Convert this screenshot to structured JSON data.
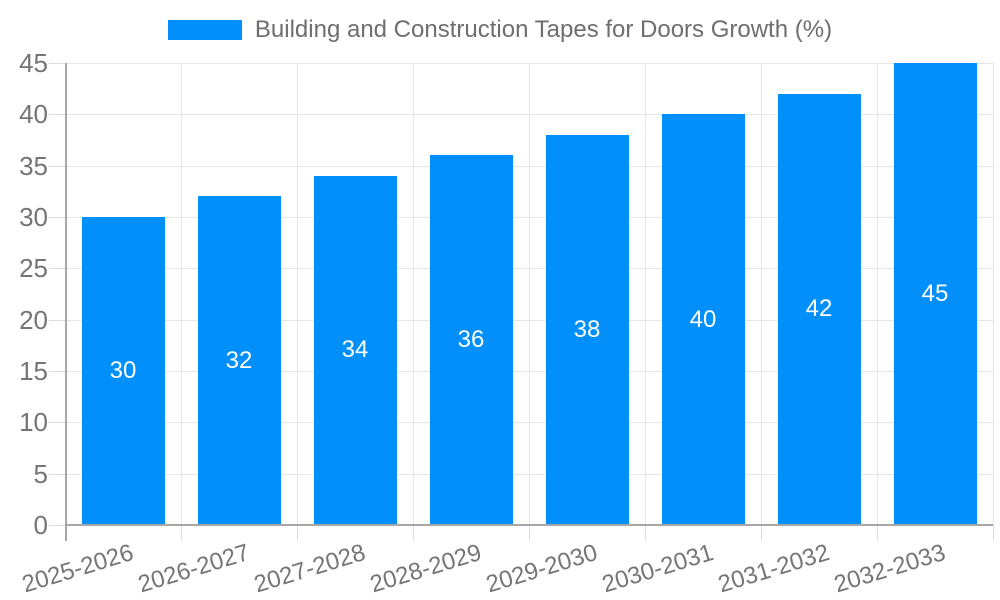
{
  "legend": {
    "label": "Building and Construction Tapes for Doors Growth (%)",
    "swatch_color": "#008FFB"
  },
  "chart_data": {
    "type": "bar",
    "title": "Building and Construction Tapes for Doors Growth (%)",
    "categories": [
      "2025-2026",
      "2026-2027",
      "2027-2028",
      "2028-2029",
      "2029-2030",
      "2030-2031",
      "2031-2032",
      "2032-2033"
    ],
    "values": [
      30,
      32,
      34,
      36,
      38,
      40,
      42,
      45
    ],
    "data_labels": [
      "30",
      "32",
      "34",
      "36",
      "38",
      "40",
      "42",
      "45"
    ],
    "ytick_labels": [
      "0",
      "5",
      "10",
      "15",
      "20",
      "25",
      "30",
      "35",
      "40",
      "45"
    ],
    "yticks": [
      0,
      5,
      10,
      15,
      20,
      25,
      30,
      35,
      40,
      45
    ],
    "ylim": [
      0,
      45
    ],
    "xlabel": "",
    "ylabel": "",
    "grid": true,
    "legend_position": "top",
    "colors": {
      "bar": "#008FFB",
      "data_label": "#ffffff",
      "grid": "#e6e6e6",
      "tick": "#dcdcdc",
      "axis": "#a6a6a6",
      "axis_label": "#757575"
    }
  }
}
